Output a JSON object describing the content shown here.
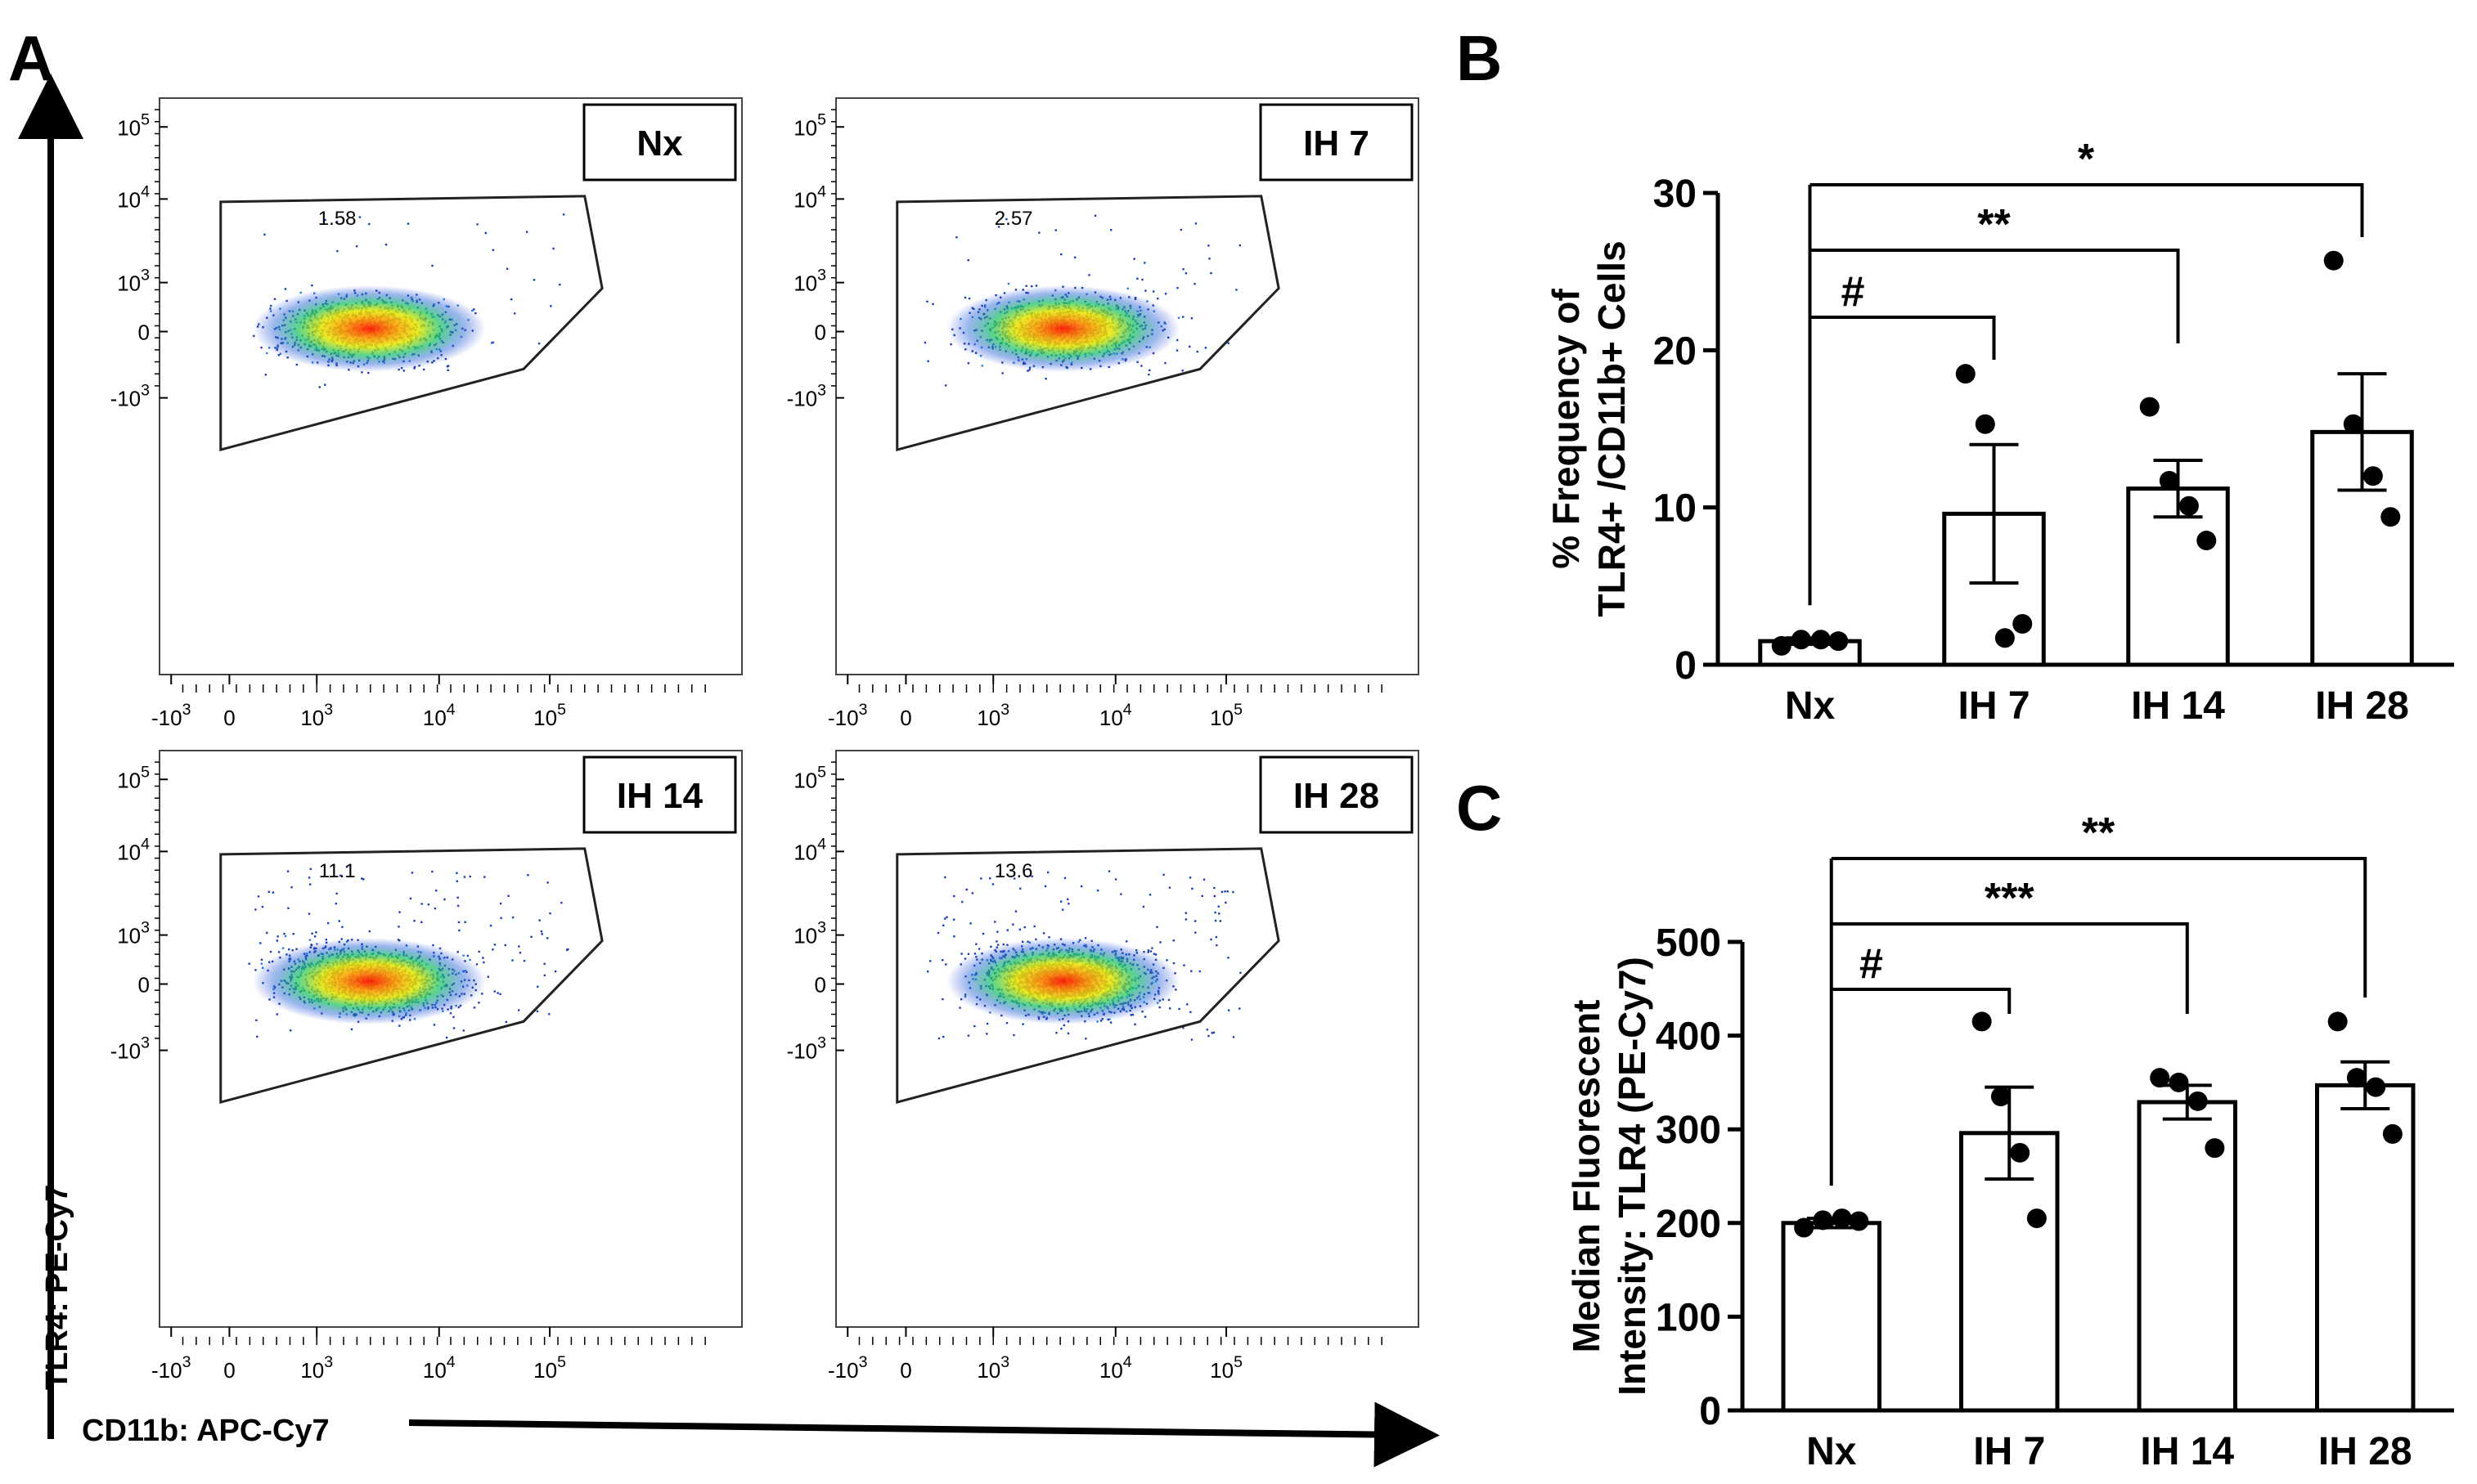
{
  "panels": {
    "a": "A",
    "b": "B",
    "c": "C"
  },
  "flow": {
    "y_axis_label": "TLR4: PE-Cy7",
    "x_axis_label": "CD11b: APC-Cy7",
    "y_ticks": [
      "10^5",
      "10^4",
      "10^3",
      "0",
      "-10^3"
    ],
    "x_ticks": [
      "-10^3",
      "0",
      "10^3",
      "10^4",
      "10^5"
    ],
    "plots": [
      {
        "id": "nx",
        "label": "Nx",
        "gate_value": "1.58"
      },
      {
        "id": "ih7",
        "label": "IH 7",
        "gate_value": "2.57"
      },
      {
        "id": "ih14",
        "label": "IH 14",
        "gate_value": "11.1"
      },
      {
        "id": "ih28",
        "label": "IH 28",
        "gate_value": "13.6"
      }
    ]
  },
  "chart_data": [
    {
      "type": "bar",
      "panel": "B",
      "title": "",
      "xlabel": "",
      "ylabel": "% Frequency of TLR4+ /CD11b+ Cells",
      "ylabel_lines": [
        "% Frequency of",
        "TLR4+ /CD11b+ Cells"
      ],
      "categories": [
        "Nx",
        "IH 7",
        "IH 14",
        "IH 28"
      ],
      "values": [
        1.5,
        9.6,
        11.2,
        14.8
      ],
      "sem": [
        0.2,
        4.4,
        1.8,
        3.7
      ],
      "points": [
        [
          1.2,
          1.6,
          1.6,
          1.5
        ],
        [
          18.5,
          15.3,
          1.7,
          2.6
        ],
        [
          16.4,
          11.7,
          10.1,
          7.9
        ],
        [
          25.7,
          15.3,
          12.0,
          9.4
        ]
      ],
      "ylim": [
        0,
        30
      ],
      "yticks": [
        0,
        10,
        20,
        30
      ],
      "significance": [
        {
          "from": "Nx",
          "to": "IH 7",
          "label": "#"
        },
        {
          "from": "Nx",
          "to": "IH 14",
          "label": "**"
        },
        {
          "from": "Nx",
          "to": "IH 28",
          "label": "*"
        }
      ]
    },
    {
      "type": "bar",
      "panel": "C",
      "title": "",
      "xlabel": "",
      "ylabel": "Median Fluorescent Intensity: TLR4 (PE-Cy7)",
      "ylabel_lines": [
        "Median Fluorescent",
        "Intensity: TLR4 (PE-Cy7)"
      ],
      "categories": [
        "Nx",
        "IH 7",
        "IH 14",
        "IH 28"
      ],
      "values": [
        200,
        296,
        329,
        347
      ],
      "sem": [
        5,
        49,
        18,
        25
      ],
      "points": [
        [
          195,
          203,
          205,
          202
        ],
        [
          415,
          335,
          275,
          205
        ],
        [
          355,
          350,
          330,
          280
        ],
        [
          415,
          355,
          345,
          295
        ]
      ],
      "ylim": [
        0,
        500
      ],
      "yticks": [
        0,
        100,
        200,
        300,
        400,
        500
      ],
      "significance": [
        {
          "from": "Nx",
          "to": "IH 7",
          "label": "#"
        },
        {
          "from": "Nx",
          "to": "IH 14",
          "label": "***"
        },
        {
          "from": "Nx",
          "to": "IH 28",
          "label": "**"
        }
      ]
    }
  ]
}
